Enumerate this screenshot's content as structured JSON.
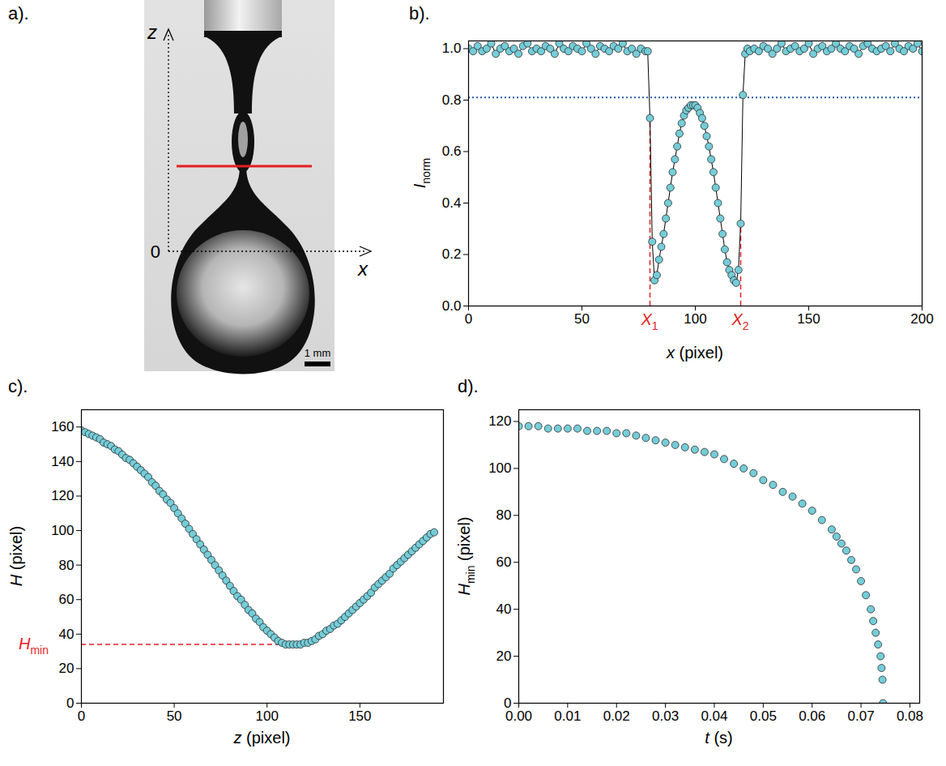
{
  "panel_a": {
    "panel": "a).",
    "type": "image",
    "z_label": "z",
    "x_label": "x",
    "origin_label": "0",
    "scale_bar": "1 mm",
    "line_color": "#e31e24"
  },
  "chart_data": [
    {
      "panel": "b).",
      "type": "line",
      "marker": "circle",
      "line_style": "solid",
      "color": "#74cdd8",
      "grid": false,
      "x_label": "x (pixel)",
      "y_label": {
        "base": "I",
        "subscript": "norm"
      },
      "xlim": [
        0,
        200
      ],
      "xticks": [
        0,
        50,
        100,
        150,
        200
      ],
      "ylim": [
        0,
        1.03
      ],
      "yticks": [
        {
          "value": 0,
          "label": "0.0"
        },
        0.2,
        0.4,
        0.6,
        0.8,
        {
          "value": 1,
          "label": "1.0"
        }
      ],
      "x": [
        0,
        2,
        4,
        6,
        8,
        10,
        12,
        14,
        16,
        18,
        20,
        22,
        24,
        26,
        28,
        30,
        32,
        34,
        36,
        38,
        40,
        42,
        44,
        46,
        48,
        50,
        52,
        54,
        56,
        58,
        60,
        62,
        64,
        66,
        68,
        70,
        72,
        74,
        76,
        78,
        79,
        80,
        81,
        82,
        83,
        84,
        85,
        86,
        87,
        88,
        89,
        90,
        91,
        92,
        93,
        94,
        95,
        96,
        97,
        98,
        99,
        100,
        101,
        102,
        103,
        104,
        105,
        106,
        107,
        108,
        109,
        110,
        111,
        112,
        113,
        114,
        115,
        116,
        117,
        118,
        119,
        120,
        121,
        122,
        123,
        124,
        126,
        128,
        130,
        132,
        134,
        136,
        138,
        140,
        142,
        144,
        146,
        148,
        150,
        152,
        154,
        156,
        158,
        160,
        162,
        164,
        166,
        168,
        170,
        172,
        174,
        176,
        178,
        180,
        182,
        184,
        186,
        188,
        190,
        192,
        194,
        196,
        198,
        200
      ],
      "values": [
        1.0,
        0.99,
        1.01,
        0.99,
        1.0,
        1.02,
        0.98,
        1.0,
        1.01,
        0.99,
        1.0,
        0.98,
        1.01,
        1.02,
        0.99,
        1.0,
        0.99,
        1.01,
        1.0,
        0.98,
        1.02,
        1.0,
        0.99,
        1.01,
        1.0,
        0.99,
        1.02,
        1.0,
        0.98,
        1.01,
        1.0,
        0.99,
        1.01,
        1.0,
        1.02,
        0.99,
        1.0,
        0.98,
        1.0,
        0.99,
        0.99,
        0.73,
        0.25,
        0.1,
        0.12,
        0.18,
        0.23,
        0.28,
        0.34,
        0.4,
        0.46,
        0.52,
        0.57,
        0.62,
        0.67,
        0.71,
        0.74,
        0.76,
        0.77,
        0.78,
        0.78,
        0.78,
        0.77,
        0.75,
        0.73,
        0.7,
        0.66,
        0.62,
        0.57,
        0.52,
        0.46,
        0.4,
        0.34,
        0.28,
        0.22,
        0.17,
        0.14,
        0.12,
        0.1,
        0.09,
        0.14,
        0.32,
        0.82,
        0.98,
        1.0,
        0.99,
        1.0,
        0.99,
        1.01,
        1.0,
        0.98,
        1.0,
        1.02,
        0.99,
        1.0,
        1.01,
        0.99,
        1.0,
        1.02,
        0.98,
        1.0,
        1.01,
        0.99,
        1.0,
        1.02,
        1.0,
        0.99,
        1.01,
        1.0,
        0.98,
        1.01,
        1.02,
        1.0,
        0.99,
        1.0,
        1.01,
        0.99,
        1.02,
        1.0,
        0.99,
        1.01,
        1.0,
        1.02,
        0.99
      ],
      "reference_line": {
        "value": 0.81,
        "color": "#1f5aa6",
        "line_style": "dotted"
      },
      "markers": [
        {
          "x": 80,
          "y": 0.73,
          "label": {
            "base": "X",
            "subscript": "1"
          },
          "color": "#e31e24",
          "line_style": "dashed"
        },
        {
          "x": 120,
          "y": 0.32,
          "label": {
            "base": "X",
            "subscript": "2"
          },
          "color": "#e31e24",
          "line_style": "dashed"
        }
      ]
    },
    {
      "panel": "c).",
      "type": "scatter",
      "marker": "circle",
      "color": "#74cdd8",
      "grid": false,
      "x_label": "z (pixel)",
      "y_label": "H (pixel)",
      "xlim": [
        0,
        195
      ],
      "xticks": [
        0,
        50,
        100,
        150
      ],
      "ylim": [
        0,
        170
      ],
      "yticks": [
        0,
        20,
        40,
        60,
        80,
        100,
        120,
        140,
        160
      ],
      "x": [
        0,
        2,
        4,
        6,
        8,
        10,
        12,
        14,
        16,
        18,
        20,
        22,
        24,
        26,
        28,
        30,
        32,
        34,
        36,
        38,
        40,
        42,
        44,
        46,
        48,
        50,
        52,
        54,
        56,
        58,
        60,
        62,
        64,
        66,
        68,
        70,
        72,
        74,
        76,
        78,
        80,
        82,
        84,
        86,
        88,
        90,
        92,
        94,
        96,
        98,
        100,
        102,
        104,
        106,
        108,
        110,
        112,
        114,
        116,
        118,
        120,
        122,
        124,
        126,
        128,
        130,
        132,
        134,
        136,
        138,
        140,
        142,
        144,
        146,
        148,
        150,
        152,
        154,
        156,
        158,
        160,
        162,
        164,
        166,
        168,
        170,
        172,
        174,
        176,
        178,
        180,
        182,
        184,
        186,
        188,
        190
      ],
      "values": [
        158,
        157,
        156,
        155,
        154,
        153,
        151,
        150,
        149,
        147,
        146,
        144,
        142,
        141,
        139,
        137,
        135,
        133,
        131,
        128,
        126,
        123,
        121,
        118,
        116,
        113,
        110,
        107,
        104,
        101,
        98,
        95,
        92,
        89,
        86,
        83,
        80,
        77,
        74,
        71,
        68,
        65,
        62,
        60,
        57,
        54,
        52,
        49,
        47,
        44,
        42,
        40,
        38,
        36,
        35,
        34,
        34,
        34,
        34,
        34,
        35,
        35,
        36,
        37,
        39,
        40,
        42,
        43,
        45,
        46,
        48,
        50,
        52,
        54,
        56,
        58,
        60,
        62,
        64,
        67,
        69,
        71,
        73,
        75,
        78,
        80,
        82,
        84,
        86,
        88,
        90,
        92,
        94,
        96,
        98,
        99
      ],
      "level_line": {
        "value": 34,
        "at_z": 112,
        "label": {
          "base": "H",
          "subscript": "min"
        },
        "color": "#e31e24",
        "line_style": "dashed"
      }
    },
    {
      "panel": "d).",
      "type": "scatter",
      "marker": "circle",
      "color": "#74cdd8",
      "grid": false,
      "x_label": "t (s)",
      "y_label": {
        "base": "H",
        "subscript": "min",
        "rest": " (pixel)"
      },
      "xlim": [
        0,
        0.082
      ],
      "xticks": [
        {
          "value": 0,
          "label": "0.00"
        },
        {
          "value": 0.01,
          "label": "0.01"
        },
        {
          "value": 0.02,
          "label": "0.02"
        },
        {
          "value": 0.03,
          "label": "0.03"
        },
        {
          "value": 0.04,
          "label": "0.04"
        },
        {
          "value": 0.05,
          "label": "0.05"
        },
        {
          "value": 0.06,
          "label": "0.06"
        },
        {
          "value": 0.07,
          "label": "0.07"
        },
        {
          "value": 0.08,
          "label": "0.08"
        }
      ],
      "ylim": [
        0,
        125
      ],
      "yticks": [
        0,
        20,
        40,
        60,
        80,
        100,
        120
      ],
      "x": [
        0,
        0.002,
        0.004,
        0.006,
        0.008,
        0.01,
        0.012,
        0.014,
        0.016,
        0.018,
        0.02,
        0.022,
        0.024,
        0.026,
        0.028,
        0.03,
        0.032,
        0.034,
        0.036,
        0.038,
        0.04,
        0.042,
        0.044,
        0.046,
        0.048,
        0.05,
        0.052,
        0.054,
        0.056,
        0.058,
        0.06,
        0.062,
        0.064,
        0.065,
        0.066,
        0.067,
        0.068,
        0.069,
        0.07,
        0.071,
        0.072,
        0.0725,
        0.073,
        0.0735,
        0.074,
        0.0742,
        0.0744,
        0.0745
      ],
      "values": [
        118,
        118,
        118,
        117,
        117,
        117,
        117,
        116,
        116,
        116,
        115,
        115,
        114,
        113,
        112,
        111,
        110,
        109,
        108,
        107,
        106,
        104,
        102,
        100,
        98,
        95,
        93,
        90,
        88,
        85,
        82,
        78,
        74,
        71,
        68,
        65,
        61,
        57,
        52,
        46,
        40,
        35,
        30,
        25,
        20,
        15,
        10,
        0
      ]
    }
  ]
}
